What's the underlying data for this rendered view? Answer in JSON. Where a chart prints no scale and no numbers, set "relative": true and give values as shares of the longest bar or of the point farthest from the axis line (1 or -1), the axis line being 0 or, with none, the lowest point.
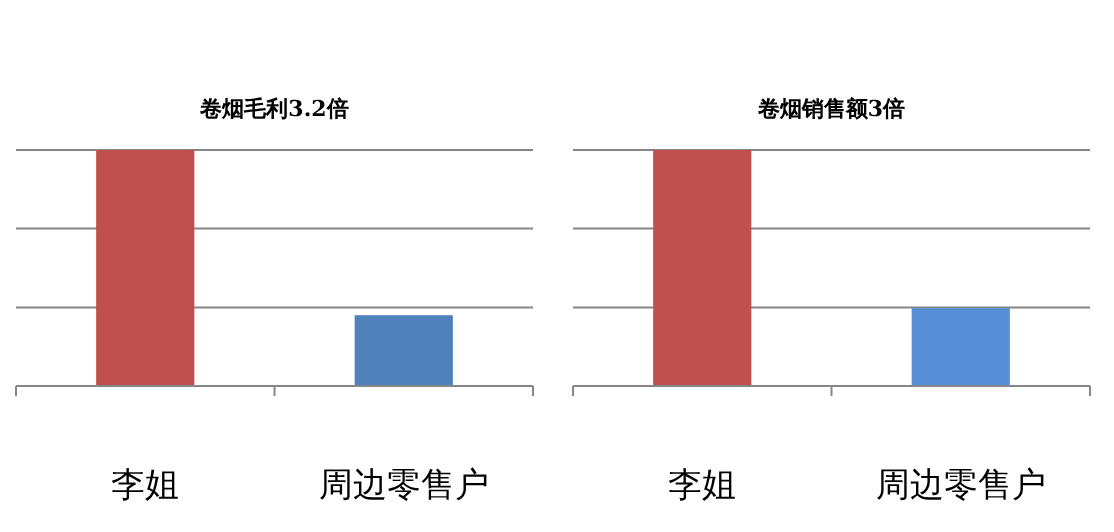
{
  "chart_data": [
    {
      "type": "bar",
      "title": "卷烟毛利3.2倍",
      "categories": [
        "李姐",
        "周边零售户"
      ],
      "relative": true,
      "colors": [
        "#c0504d",
        "#4f81bd"
      ],
      "values": [
        1,
        0.3
      ],
      "ref_lines": [
        {
          "axis": "y",
          "value": 0.333,
          "color": "#868686"
        },
        {
          "axis": "y",
          "value": 0.667,
          "color": "#868686"
        },
        {
          "axis": "y",
          "value": 1,
          "color": "#868686"
        }
      ]
    },
    {
      "type": "bar",
      "title": "卷烟销售额3倍",
      "categories": [
        "李姐",
        "周边零售户"
      ],
      "relative": true,
      "colors": [
        "#c0504d",
        "#558ed5"
      ],
      "values": [
        1,
        0.33
      ],
      "ref_lines": [
        {
          "axis": "y",
          "value": 0.333,
          "color": "#868686"
        },
        {
          "axis": "y",
          "value": 0.667,
          "color": "#868686"
        },
        {
          "axis": "y",
          "value": 1,
          "color": "#868686"
        }
      ]
    }
  ]
}
